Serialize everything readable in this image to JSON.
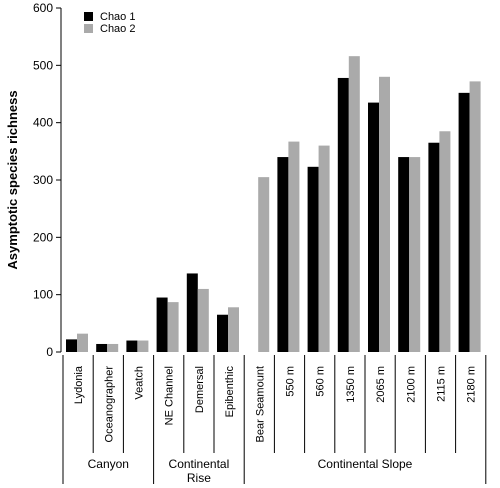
{
  "chart_data": {
    "type": "bar",
    "ylabel": "Asymptotic species richness",
    "ylim": [
      0,
      600
    ],
    "yticks": [
      0,
      100,
      200,
      300,
      400,
      500,
      600
    ],
    "grid": false,
    "legend_position": "top-left",
    "categories": [
      "Lydonia",
      "Oceanographer",
      "Veatch",
      "NE Channel",
      "Demersal",
      "Epibenthic",
      "Bear Seamount",
      "550 m",
      "560 m",
      "1350 m",
      "2065 m",
      "2100 m",
      "2115 m",
      "2180 m"
    ],
    "series": [
      {
        "name": "Chao 1",
        "color": "#000000",
        "values": [
          22,
          14,
          20,
          95,
          137,
          65,
          null,
          340,
          323,
          478,
          435,
          340,
          365,
          452
        ]
      },
      {
        "name": "Chao 2",
        "color": "#aaaaaa",
        "values": [
          32,
          14,
          20,
          87,
          110,
          78,
          305,
          367,
          360,
          516,
          480,
          340,
          385,
          472
        ]
      }
    ],
    "groups": [
      {
        "label": "Canyon",
        "start": 0,
        "end": 2
      },
      {
        "label": "Continental\nRise",
        "start": 3,
        "end": 5
      },
      {
        "label": "Continental Slope",
        "start": 6,
        "end": 13
      }
    ]
  }
}
